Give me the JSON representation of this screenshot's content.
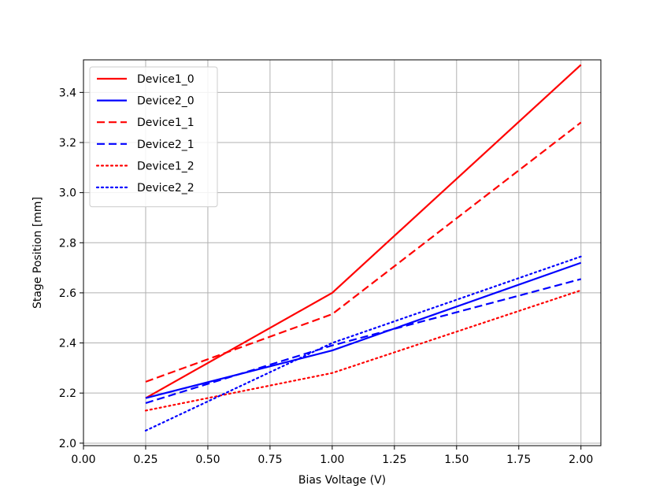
{
  "chart_data": {
    "type": "line",
    "title": "",
    "xlabel": "Bias Voltage (V)",
    "ylabel": "Stage Position [mm]",
    "xlim": [
      0.0,
      2.08
    ],
    "ylim": [
      1.99,
      3.53
    ],
    "xticks": [
      "0.00",
      "0.25",
      "0.50",
      "0.75",
      "1.00",
      "1.25",
      "1.50",
      "1.75",
      "2.00"
    ],
    "yticks": [
      "2.0",
      "2.2",
      "2.4",
      "2.6",
      "2.8",
      "3.0",
      "3.2",
      "3.4"
    ],
    "xtick_values": [
      0.0,
      0.25,
      0.5,
      0.75,
      1.0,
      1.25,
      1.5,
      1.75,
      2.0
    ],
    "ytick_values": [
      2.0,
      2.2,
      2.4,
      2.6,
      2.8,
      3.0,
      3.2,
      3.4
    ],
    "grid": true,
    "legend_position": "top-left",
    "x": [
      0.25,
      1.0,
      2.0
    ],
    "series": [
      {
        "name": "Device1_0",
        "color": "#ff0000",
        "linestyle": "solid",
        "values": [
          2.18,
          2.6,
          3.51
        ]
      },
      {
        "name": "Device2_0",
        "color": "#0000ff",
        "linestyle": "solid",
        "values": [
          2.18,
          2.37,
          2.72
        ]
      },
      {
        "name": "Device1_1",
        "color": "#ff0000",
        "linestyle": "dashed",
        "values": [
          2.245,
          2.515,
          3.28
        ]
      },
      {
        "name": "Device2_1",
        "color": "#0000ff",
        "linestyle": "dashed",
        "values": [
          2.16,
          2.39,
          2.655
        ]
      },
      {
        "name": "Device1_2",
        "color": "#ff0000",
        "linestyle": "dotted",
        "values": [
          2.13,
          2.28,
          2.61
        ]
      },
      {
        "name": "Device2_2",
        "color": "#0000ff",
        "linestyle": "dotted",
        "values": [
          2.05,
          2.4,
          2.745
        ]
      }
    ]
  }
}
